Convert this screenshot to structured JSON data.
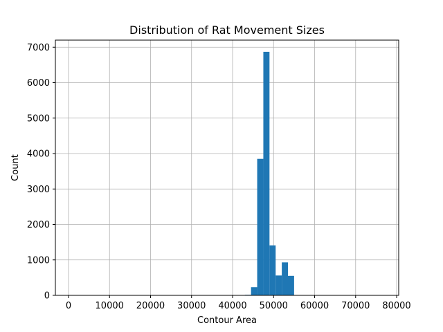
{
  "chart_data": {
    "type": "bar",
    "title": "Distribution of Rat Movement Sizes",
    "xlabel": "Contour Area",
    "ylabel": "Count",
    "xlim": [
      -3200,
      80500
    ],
    "ylim": [
      0,
      7200
    ],
    "grid": true,
    "bar_color": "#1f77b4",
    "xticks": [
      0,
      10000,
      20000,
      30000,
      40000,
      50000,
      60000,
      70000,
      80000
    ],
    "yticks": [
      0,
      1000,
      2000,
      3000,
      4000,
      5000,
      6000,
      7000
    ],
    "bins": [
      {
        "x0": 41500,
        "x1": 43000,
        "value": 5
      },
      {
        "x0": 43000,
        "x1": 44500,
        "value": 15
      },
      {
        "x0": 44500,
        "x1": 46000,
        "value": 230
      },
      {
        "x0": 46000,
        "x1": 47500,
        "value": 3850
      },
      {
        "x0": 47500,
        "x1": 49000,
        "value": 6870
      },
      {
        "x0": 49000,
        "x1": 50500,
        "value": 1410
      },
      {
        "x0": 50500,
        "x1": 52000,
        "value": 560
      },
      {
        "x0": 52000,
        "x1": 53500,
        "value": 930
      },
      {
        "x0": 53500,
        "x1": 55000,
        "value": 550
      }
    ]
  }
}
